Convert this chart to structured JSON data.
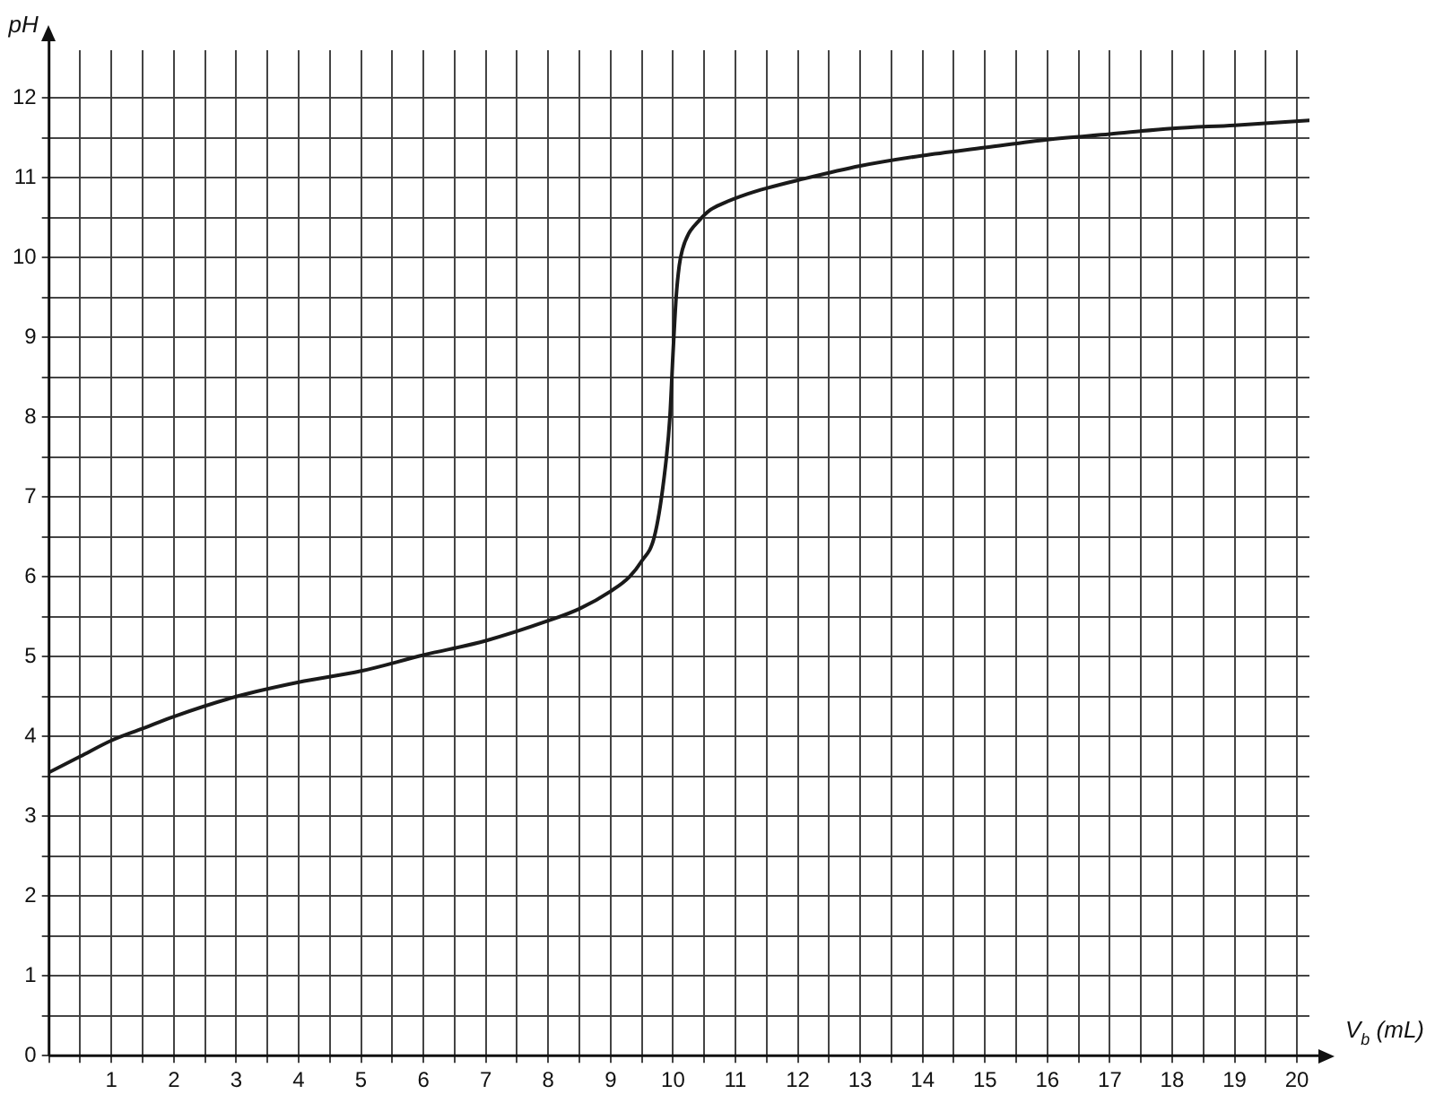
{
  "chart_data": {
    "type": "line",
    "xlabel": "V$_{b}$ (mL)",
    "ylabel": "pH",
    "x": [
      0,
      0.5,
      1,
      1.5,
      2,
      3,
      4,
      5,
      6,
      7,
      8,
      8.5,
      9,
      9.3,
      9.5,
      9.7,
      9.85,
      9.95,
      10.0,
      10.05,
      10.1,
      10.15,
      10.25,
      10.4,
      10.6,
      10.8,
      11.2,
      11.5,
      12,
      13,
      14,
      15,
      16,
      17,
      18,
      19,
      20.2
    ],
    "series": [
      {
        "color": "#1a1a1a",
        "values": [
          3.55,
          3.75,
          3.95,
          4.1,
          4.25,
          4.5,
          4.68,
          4.82,
          5.02,
          5.2,
          5.45,
          5.6,
          5.82,
          6.0,
          6.2,
          6.5,
          7.2,
          8.0,
          8.8,
          9.5,
          9.9,
          10.1,
          10.3,
          10.45,
          10.6,
          10.68,
          10.8,
          10.87,
          10.97,
          11.15,
          11.28,
          11.38,
          11.48,
          11.55,
          11.62,
          11.66,
          11.72
        ]
      }
    ],
    "xlim": [
      0,
      20.2
    ],
    "ylim": [
      0,
      12.6
    ],
    "xticks": [
      {
        "value": 0,
        "label": null
      },
      {
        "value": 0.5,
        "label": null
      },
      1,
      {
        "value": 1.5,
        "label": null
      },
      2,
      {
        "value": 2.5,
        "label": null
      },
      3,
      {
        "value": 3.5,
        "label": null
      },
      4,
      {
        "value": 4.5,
        "label": null
      },
      5,
      {
        "value": 5.5,
        "label": null
      },
      6,
      {
        "value": 6.5,
        "label": null
      },
      7,
      {
        "value": 7.5,
        "label": null
      },
      8,
      {
        "value": 8.5,
        "label": null
      },
      9,
      {
        "value": 9.5,
        "label": null
      },
      10,
      {
        "value": 10.5,
        "label": null
      },
      11,
      {
        "value": 11.5,
        "label": null
      },
      12,
      {
        "value": 12.5,
        "label": null
      },
      13,
      {
        "value": 13.5,
        "label": null
      },
      14,
      {
        "value": 14.5,
        "label": null
      },
      15,
      {
        "value": 15.5,
        "label": null
      },
      16,
      {
        "value": 16.5,
        "label": null
      },
      17,
      {
        "value": 17.5,
        "label": null
      },
      18,
      {
        "value": 18.5,
        "label": null
      },
      19,
      {
        "value": 19.5,
        "label": null
      },
      20
    ],
    "yticks": [
      0,
      {
        "value": 0.5,
        "label": null
      },
      1,
      {
        "value": 1.5,
        "label": null
      },
      2,
      {
        "value": 2.5,
        "label": null
      },
      3,
      {
        "value": 3.5,
        "label": null
      },
      4,
      {
        "value": 4.5,
        "label": null
      },
      5,
      {
        "value": 5.5,
        "label": null
      },
      6,
      {
        "value": 6.5,
        "label": null
      },
      7,
      {
        "value": 7.5,
        "label": null
      },
      8,
      {
        "value": 8.5,
        "label": null
      },
      9,
      {
        "value": 9.5,
        "label": null
      },
      10,
      {
        "value": 10.5,
        "label": null
      },
      11,
      {
        "value": 11.5,
        "label": null
      },
      12
    ],
    "grid": true,
    "legend": false,
    "marker": "none",
    "line_style": "solid"
  }
}
